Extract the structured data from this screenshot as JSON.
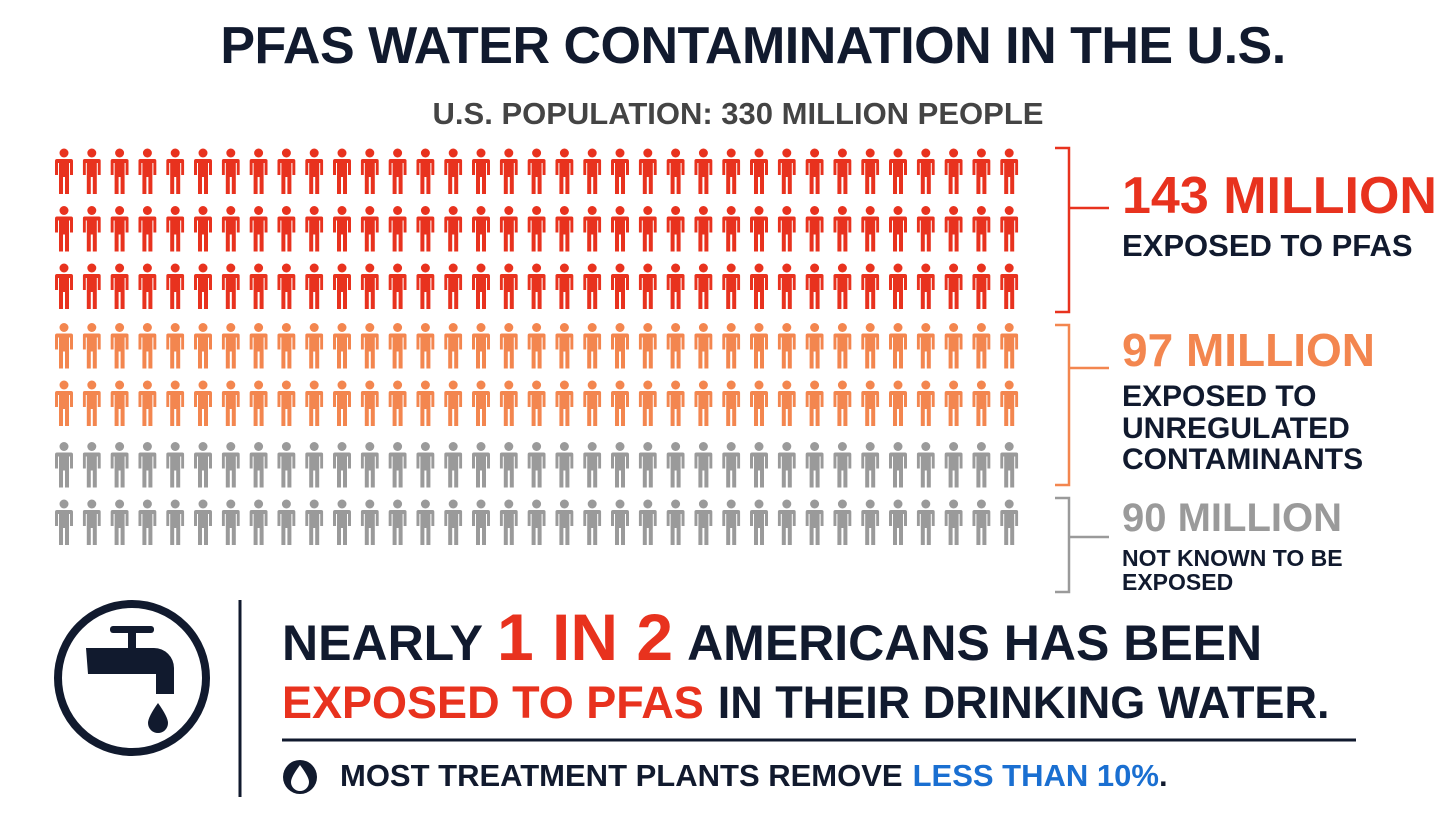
{
  "title": "PFAS WATER CONTAMINATION IN THE U.S.",
  "subtitle": "U.S. POPULATION: 330 MILLION PEOPLE",
  "groups": [
    {
      "amount": "143 MILLION",
      "label": [
        "EXPOSED TO PFAS"
      ],
      "color": "#e8321e"
    },
    {
      "amount": "97 MILLION",
      "label": [
        "EXPOSED TO",
        "UNREGULATED",
        "CONTAMINANTS"
      ],
      "color": "#f3864f"
    },
    {
      "amount": "90 MILLION",
      "label": [
        "NOT KNOWN TO BE",
        "EXPOSED"
      ],
      "color": "#9a9a9a"
    }
  ],
  "headline": [
    [
      "NEARLY",
      "1 IN 2",
      "AMERICANS HAS BEEN"
    ],
    [
      "EXPOSED TO PFAS",
      "IN THEIR DRINKING WATER."
    ]
  ],
  "footnote": [
    "MOST TREATMENT PLANTS REMOVE",
    "LESS THAN 10%",
    "."
  ]
}
